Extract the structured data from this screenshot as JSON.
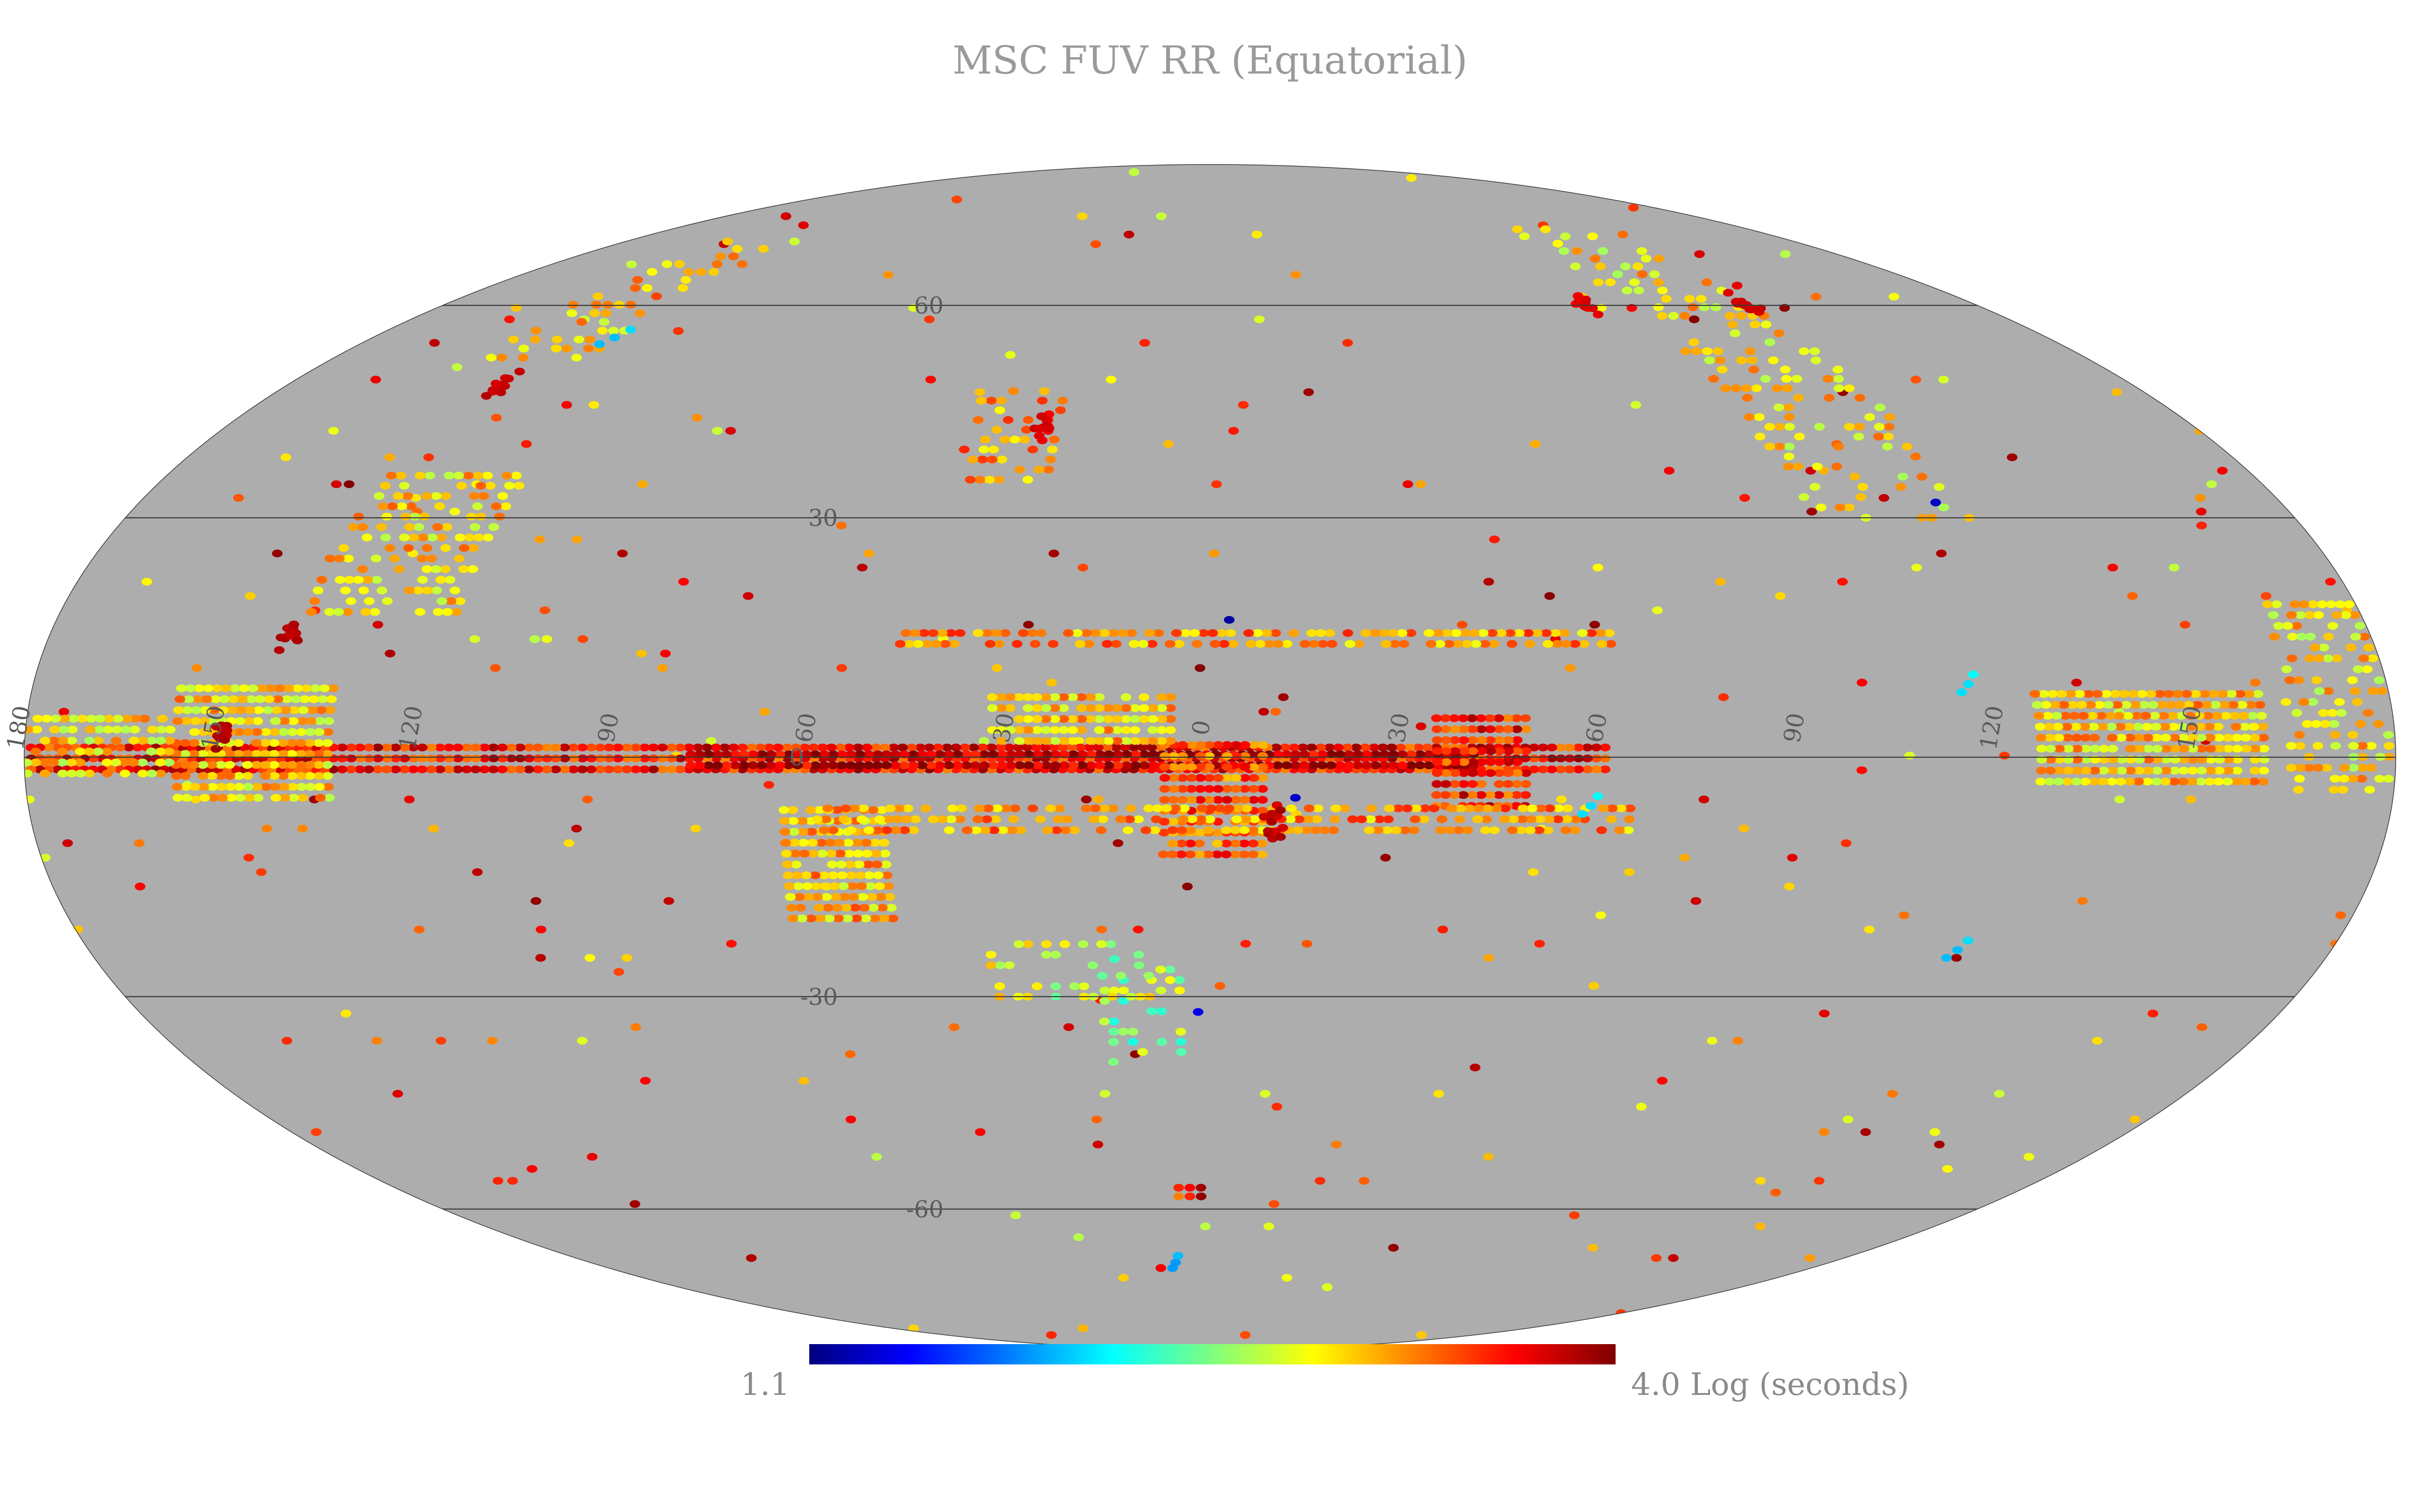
{
  "title": "MSC FUV RR (Equatorial)",
  "projection": "Mollweide",
  "coordinate_system": "Equatorial",
  "background_color": "#adadad",
  "grid_color": "#3a3a3a",
  "colorbar": {
    "min_label": "1.1",
    "max_label": "4.0 Log (seconds)",
    "min": 1.1,
    "max": 4.0,
    "unit": "Log (seconds)",
    "colormap": "jet",
    "colors": [
      "#00007f",
      "#0000ff",
      "#007fff",
      "#00ffff",
      "#7fff7f",
      "#ffff00",
      "#ff7f00",
      "#ff0000",
      "#7f0000"
    ]
  },
  "grid": {
    "longitude_labels": [
      "180",
      "150",
      "120",
      "90",
      "60",
      "30",
      "0",
      "30",
      "60",
      "90",
      "120",
      "150"
    ],
    "longitude_values": [
      180,
      150,
      120,
      90,
      60,
      30,
      0,
      -30,
      -60,
      -90,
      -120,
      -150
    ],
    "latitude_labels": [
      "60",
      "30",
      "0",
      "-30",
      "-60"
    ],
    "latitude_values": [
      60,
      30,
      0,
      -30,
      -60
    ]
  },
  "chart_data": {
    "type": "heatmap",
    "projection": "mollweide",
    "title": "MSC FUV RR (Equatorial)",
    "value_unit": "Log (seconds)",
    "value_range": [
      1.1,
      4.0
    ],
    "regions": [
      {
        "lon_range": [
          -60,
          180
        ],
        "lat_range": [
          -1.5,
          1.5
        ],
        "value": 3.6,
        "density": 1.0
      },
      {
        "lon_range": [
          -40,
          80
        ],
        "lat_range": [
          -1,
          1
        ],
        "value": 3.85,
        "density": 1.0
      },
      {
        "lon_range": [
          -8,
          8
        ],
        "lat_range": [
          -12,
          2
        ],
        "value": 3.4,
        "density": 0.95
      },
      {
        "lon_range": [
          -48,
          -34
        ],
        "lat_range": [
          -6,
          5
        ],
        "value": 3.55,
        "density": 0.95
      },
      {
        "lon_range": [
          50,
          66
        ],
        "lat_range": [
          -20,
          -6
        ],
        "value": 3.1,
        "density": 0.95
      },
      {
        "lon_range": [
          6,
          34
        ],
        "lat_range": [
          2,
          8
        ],
        "value": 3.05,
        "density": 0.9
      },
      {
        "lon_range": [
          -62,
          48
        ],
        "lat_range": [
          14,
          16.5
        ],
        "value": 3.2,
        "density": 0.75
      },
      {
        "lon_range": [
          -64,
          60
        ],
        "lat_range": [
          -9,
          -6
        ],
        "value": 3.2,
        "density": 0.7
      },
      {
        "lon_range": [
          -160,
          -125
        ],
        "lat_range": [
          -3,
          9
        ],
        "value": 3.05,
        "density": 0.95
      },
      {
        "lon_range": [
          134,
          158
        ],
        "lat_range": [
          -5,
          9
        ],
        "value": 3.05,
        "density": 0.95
      },
      {
        "lon_range": [
          158,
          180
        ],
        "lat_range": [
          -2,
          6
        ],
        "value": 3.0,
        "density": 0.7
      },
      {
        "lon_range": [
          118,
          142
        ],
        "lat_range": [
          18,
          36
        ],
        "value": 3.05,
        "density": 0.5
      },
      {
        "lon_range": [
          128,
          150
        ],
        "lat_range": [
          52,
          72
        ],
        "value": 3.1,
        "density": 0.4
      },
      {
        "lon_range": [
          -126,
          -98
        ],
        "lat_range": [
          30,
          75
        ],
        "value": 3.0,
        "density": 0.35
      },
      {
        "lon_range": [
          28,
          45
        ],
        "lat_range": [
          35,
          48
        ],
        "value": 3.2,
        "density": 0.45
      },
      {
        "lon_range": [
          -179,
          -164
        ],
        "lat_range": [
          -4,
          20
        ],
        "value": 3.0,
        "density": 0.5
      },
      {
        "lon_range": [
          2,
          8
        ],
        "lat_range": [
          -58,
          -56
        ],
        "value": 3.6,
        "density": 1.0
      },
      {
        "lon_range": [
          5,
          18
        ],
        "lat_range": [
          -40,
          -25
        ],
        "value": 2.6,
        "density": 0.25
      },
      {
        "lon_range": [
          10,
          36
        ],
        "lat_range": [
          -30,
          -22
        ],
        "value": 2.8,
        "density": 0.3
      }
    ],
    "hot_spots": [
      {
        "lon": 150,
        "lat": 2,
        "value": 3.95
      },
      {
        "lon": 143,
        "lat": 15,
        "value": 3.9
      },
      {
        "lon": 138,
        "lat": 48,
        "value": 3.9
      },
      {
        "lon": 30,
        "lat": 42,
        "value": 3.8
      },
      {
        "lon": -126,
        "lat": 60,
        "value": 3.85
      },
      {
        "lon": -88,
        "lat": 60,
        "value": 3.8
      },
      {
        "lon": -10,
        "lat": -8,
        "value": 3.9
      }
    ],
    "low_value_points": [
      {
        "lon": -3,
        "lat": 17,
        "value": 1.2
      },
      {
        "lon": -13,
        "lat": -5,
        "value": 1.3
      },
      {
        "lon": 2,
        "lat": -32,
        "value": 1.4
      },
      {
        "lon": -122,
        "lat": 32,
        "value": 1.3
      },
      {
        "lon": 128,
        "lat": 55,
        "value": 2.0
      },
      {
        "lon": -58,
        "lat": -6,
        "value": 2.1
      },
      {
        "lon": -120,
        "lat": -24,
        "value": 2.0
      },
      {
        "lon": -116,
        "lat": 9,
        "value": 2.1
      },
      {
        "lon": 10,
        "lat": -69,
        "value": 1.9
      }
    ],
    "scatter_fraction": 0.0035,
    "scatter_value_range": [
      2.7,
      4.0
    ]
  }
}
